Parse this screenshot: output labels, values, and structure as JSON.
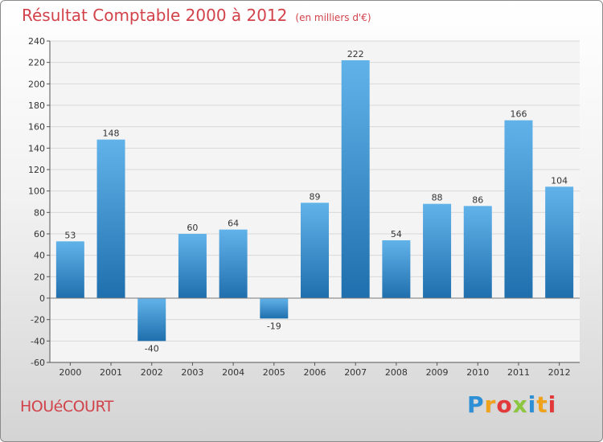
{
  "header": {
    "title": "Résultat Comptable 2000 à 2012",
    "subtitle": "(en milliers d'€)"
  },
  "footer": {
    "commune": "HOUéCOURT",
    "logo_text": "Proxiti",
    "logo_letters": [
      {
        "ch": "P",
        "color": "#2d8fd5"
      },
      {
        "ch": "r",
        "color": "#f0a21a"
      },
      {
        "ch": "o",
        "color": "#e23a3a"
      },
      {
        "ch": "x",
        "color": "#8cc63f"
      },
      {
        "ch": "i",
        "color": "#2d8fd5"
      },
      {
        "ch": "t",
        "color": "#f0a21a"
      },
      {
        "ch": "i",
        "color": "#e23a3a"
      }
    ]
  },
  "chart_data": {
    "type": "bar",
    "categories": [
      "2000",
      "2001",
      "2002",
      "2003",
      "2004",
      "2005",
      "2006",
      "2007",
      "2008",
      "2009",
      "2010",
      "2011",
      "2012"
    ],
    "values": [
      53,
      148,
      -40,
      60,
      64,
      -19,
      89,
      222,
      54,
      88,
      86,
      166,
      104
    ],
    "ylim": [
      -60,
      240
    ],
    "ytick_step": 20,
    "grid": true,
    "bar_color_top": "#62b2ea",
    "bar_color_bottom": "#1f6fae",
    "title": "Résultat Comptable 2000 à 2012",
    "xlabel": "",
    "ylabel": ""
  }
}
